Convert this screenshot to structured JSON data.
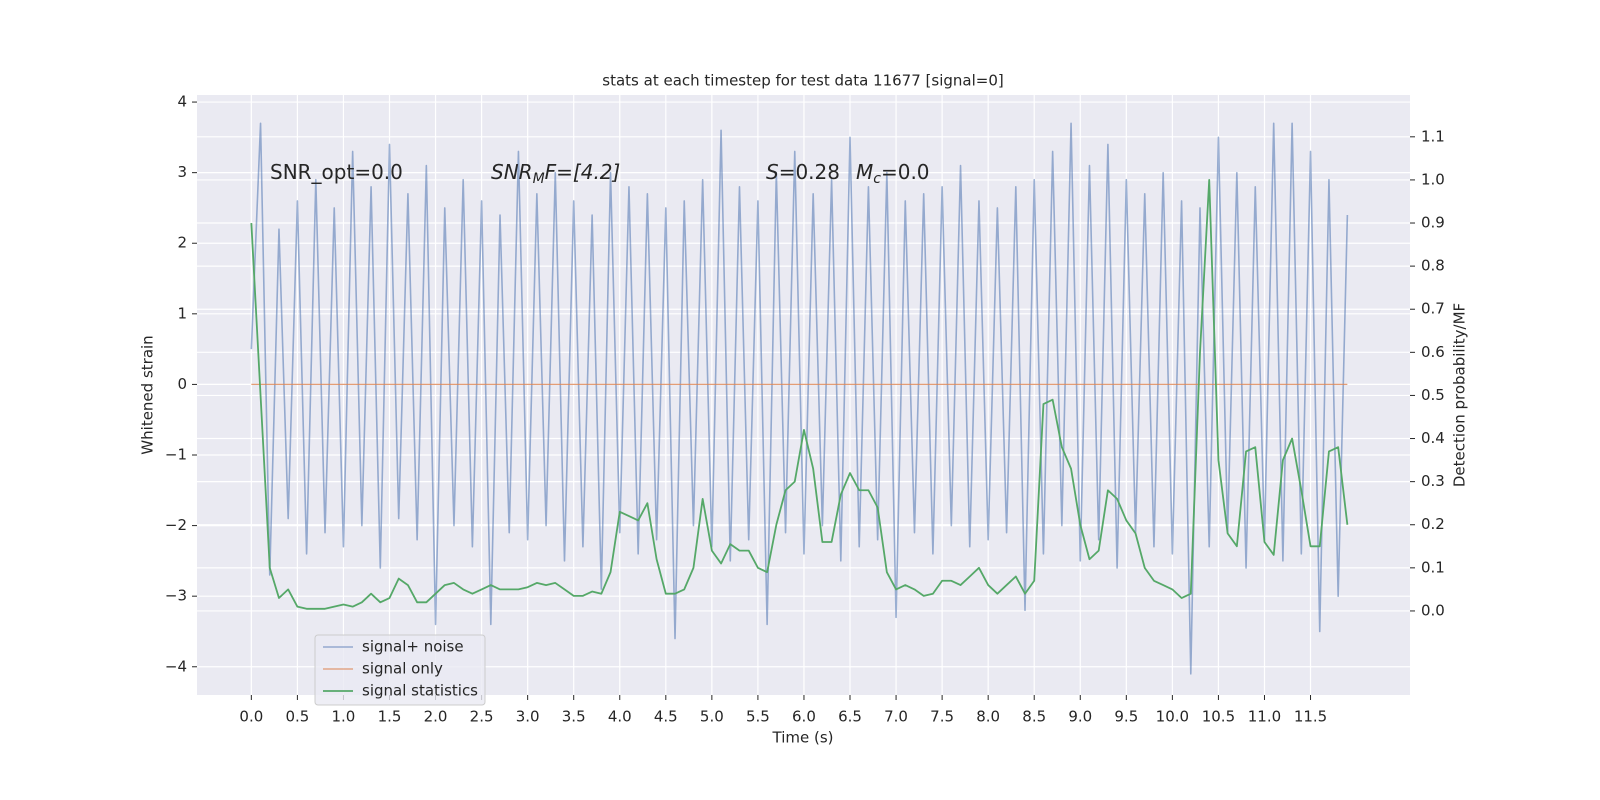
{
  "chart_data": {
    "type": "line",
    "title": "stats at each timestep for test data 11677 [signal=0]",
    "xlabel": "Time (s)",
    "ylabel": "Whitened strain",
    "y2label": "Detection probability/MF",
    "annotations": [
      [
        "SNR_opt=0.0"
      ],
      [
        "SNR",
        "M",
        "F=[4.2]"
      ],
      [
        "S",
        "=0.28",
        "M",
        "c",
        "=0.0"
      ]
    ],
    "grid": true,
    "legend": "lower left",
    "xlim": [
      -0.59,
      12.58
    ],
    "ylim": [
      -4.4,
      4.1
    ],
    "y2lim": [
      -0.195,
      1.197
    ],
    "xticks": [
      {
        "value": 0,
        "label": "0.0"
      },
      0.5,
      {
        "value": 1,
        "label": "1.0"
      },
      1.5,
      {
        "value": 2,
        "label": "2.0"
      },
      2.5,
      {
        "value": 3,
        "label": "3.0"
      },
      3.5,
      {
        "value": 4,
        "label": "4.0"
      },
      4.5,
      {
        "value": 5,
        "label": "5.0"
      },
      5.5,
      {
        "value": 6,
        "label": "6.0"
      },
      6.5,
      {
        "value": 7,
        "label": "7.0"
      },
      7.5,
      {
        "value": 8,
        "label": "8.0"
      },
      8.5,
      {
        "value": 9,
        "label": "9.0"
      },
      9.5,
      {
        "value": 10,
        "label": "10.0"
      },
      10.5,
      {
        "value": 11,
        "label": "11.0"
      },
      11.5
    ],
    "yticks": [
      {
        "value": -4,
        "label": "−4"
      },
      {
        "value": -3,
        "label": "−3"
      },
      {
        "value": -2,
        "label": "−2"
      },
      {
        "value": -1,
        "label": "−1"
      },
      0,
      1,
      2,
      3,
      4
    ],
    "y2ticks": [
      {
        "value": 0,
        "label": "0.0"
      },
      0.1,
      0.2,
      0.3,
      0.4,
      0.5,
      0.6,
      0.7,
      0.8,
      0.9,
      {
        "value": 1,
        "label": "1.0"
      },
      1.1
    ],
    "x": [
      0,
      0.1,
      0.2,
      0.3,
      0.4,
      0.5,
      0.6,
      0.7,
      0.8,
      0.9,
      1,
      1.1,
      1.2,
      1.3,
      1.4,
      1.5,
      1.6,
      1.7,
      1.8,
      1.9,
      2,
      2.1,
      2.2,
      2.3,
      2.4,
      2.5,
      2.6,
      2.7,
      2.8,
      2.9,
      3,
      3.1,
      3.2,
      3.3,
      3.4,
      3.5,
      3.6,
      3.7,
      3.8,
      3.9,
      4,
      4.1,
      4.2,
      4.3,
      4.4,
      4.5,
      4.6,
      4.7,
      4.8,
      4.9,
      5,
      5.1,
      5.2,
      5.3,
      5.4,
      5.5,
      5.6,
      5.7,
      5.8,
      5.9,
      6,
      6.1,
      6.2,
      6.3,
      6.4,
      6.5,
      6.6,
      6.7,
      6.8,
      6.9,
      7,
      7.1,
      7.2,
      7.3,
      7.4,
      7.5,
      7.6,
      7.7,
      7.8,
      7.9,
      8,
      8.1,
      8.2,
      8.3,
      8.4,
      8.5,
      8.6,
      8.7,
      8.8,
      8.9,
      9,
      9.1,
      9.2,
      9.3,
      9.4,
      9.5,
      9.6,
      9.7,
      9.8,
      9.9,
      10,
      10.1,
      10.2,
      10.3,
      10.4,
      10.5,
      10.6,
      10.7,
      10.8,
      10.9,
      11,
      11.1,
      11.2,
      11.3,
      11.4,
      11.5,
      11.6,
      11.7,
      11.8,
      11.9
    ],
    "series": [
      {
        "name": "signal+ noise",
        "color": "#4c72b0",
        "values": [
          0.5,
          3.7,
          -2.7,
          2.2,
          -1.9,
          2.6,
          -2.4,
          2.9,
          -2.1,
          2.5,
          -2.3,
          3.3,
          -2.0,
          2.8,
          -2.6,
          3.4,
          -1.9,
          2.7,
          -2.2,
          3.1,
          -3.4,
          2.5,
          -2.0,
          2.9,
          -2.3,
          2.6,
          -3.4,
          2.4,
          -2.1,
          3.3,
          -2.2,
          2.7,
          -2.0,
          3.0,
          -2.5,
          2.6,
          -2.3,
          2.4,
          -2.9,
          3.0,
          -2.1,
          2.8,
          -2.4,
          2.7,
          -2.2,
          2.5,
          -3.6,
          2.6,
          -2.0,
          2.9,
          -2.3,
          3.6,
          -2.5,
          2.8,
          -2.2,
          2.6,
          -3.4,
          3.0,
          -2.1,
          3.3,
          -2.4,
          2.7,
          -2.0,
          2.9,
          -2.5,
          3.5,
          -2.3,
          2.8,
          -2.2,
          3.0,
          -3.3,
          2.6,
          -2.1,
          2.7,
          -2.4,
          2.8,
          -2.0,
          3.1,
          -2.3,
          2.6,
          -2.2,
          2.5,
          -2.1,
          2.8,
          -3.2,
          2.9,
          -2.4,
          3.3,
          -2.0,
          3.7,
          -2.5,
          3.1,
          -2.2,
          3.4,
          -2.6,
          2.9,
          -2.1,
          2.7,
          -2.3,
          3.0,
          -2.4,
          2.6,
          -4.1,
          2.5,
          -2.3,
          3.5,
          -2.1,
          3.0,
          -2.6,
          2.8,
          -2.2,
          3.7,
          -2.5,
          3.7,
          -2.4,
          3.3,
          -3.5,
          2.9,
          -3.0,
          2.4
        ]
      },
      {
        "name": "signal only",
        "color": "#dd8452",
        "values": [
          0,
          0,
          0,
          0,
          0,
          0,
          0,
          0,
          0,
          0,
          0,
          0,
          0,
          0,
          0,
          0,
          0,
          0,
          0,
          0,
          0,
          0,
          0,
          0,
          0,
          0,
          0,
          0,
          0,
          0,
          0,
          0,
          0,
          0,
          0,
          0,
          0,
          0,
          0,
          0,
          0,
          0,
          0,
          0,
          0,
          0,
          0,
          0,
          0,
          0,
          0,
          0,
          0,
          0,
          0,
          0,
          0,
          0,
          0,
          0,
          0,
          0,
          0,
          0,
          0,
          0,
          0,
          0,
          0,
          0,
          0,
          0,
          0,
          0,
          0,
          0,
          0,
          0,
          0,
          0,
          0,
          0,
          0,
          0,
          0,
          0,
          0,
          0,
          0,
          0,
          0,
          0,
          0,
          0,
          0,
          0,
          0,
          0,
          0,
          0,
          0,
          0,
          0,
          0,
          0,
          0,
          0,
          0,
          0,
          0,
          0,
          0,
          0,
          0,
          0,
          0,
          0,
          0,
          0,
          0
        ]
      },
      {
        "name": "signal statistics",
        "color": "#55a868",
        "axis": "y2",
        "values": [
          0.9,
          0.5,
          0.1,
          0.03,
          0.05,
          0.01,
          0.005,
          0.005,
          0.005,
          0.01,
          0.015,
          0.01,
          0.02,
          0.04,
          0.02,
          0.03,
          0.075,
          0.06,
          0.02,
          0.02,
          0.04,
          0.06,
          0.065,
          0.05,
          0.04,
          0.05,
          0.06,
          0.05,
          0.05,
          0.05,
          0.055,
          0.065,
          0.06,
          0.065,
          0.05,
          0.035,
          0.035,
          0.045,
          0.04,
          0.09,
          0.23,
          0.22,
          0.21,
          0.25,
          0.12,
          0.04,
          0.04,
          0.05,
          0.1,
          0.26,
          0.14,
          0.11,
          0.155,
          0.14,
          0.14,
          0.1,
          0.09,
          0.2,
          0.28,
          0.3,
          0.42,
          0.33,
          0.16,
          0.16,
          0.27,
          0.32,
          0.28,
          0.28,
          0.24,
          0.09,
          0.05,
          0.06,
          0.05,
          0.035,
          0.04,
          0.07,
          0.07,
          0.06,
          0.08,
          0.1,
          0.06,
          0.04,
          0.06,
          0.08,
          0.04,
          0.07,
          0.48,
          0.49,
          0.38,
          0.33,
          0.2,
          0.12,
          0.14,
          0.28,
          0.26,
          0.21,
          0.18,
          0.1,
          0.07,
          0.06,
          0.05,
          0.03,
          0.04,
          0.6,
          1.0,
          0.35,
          0.18,
          0.15,
          0.37,
          0.38,
          0.16,
          0.13,
          0.35,
          0.4,
          0.28,
          0.15,
          0.15,
          0.37,
          0.38,
          0.2
        ]
      }
    ]
  }
}
